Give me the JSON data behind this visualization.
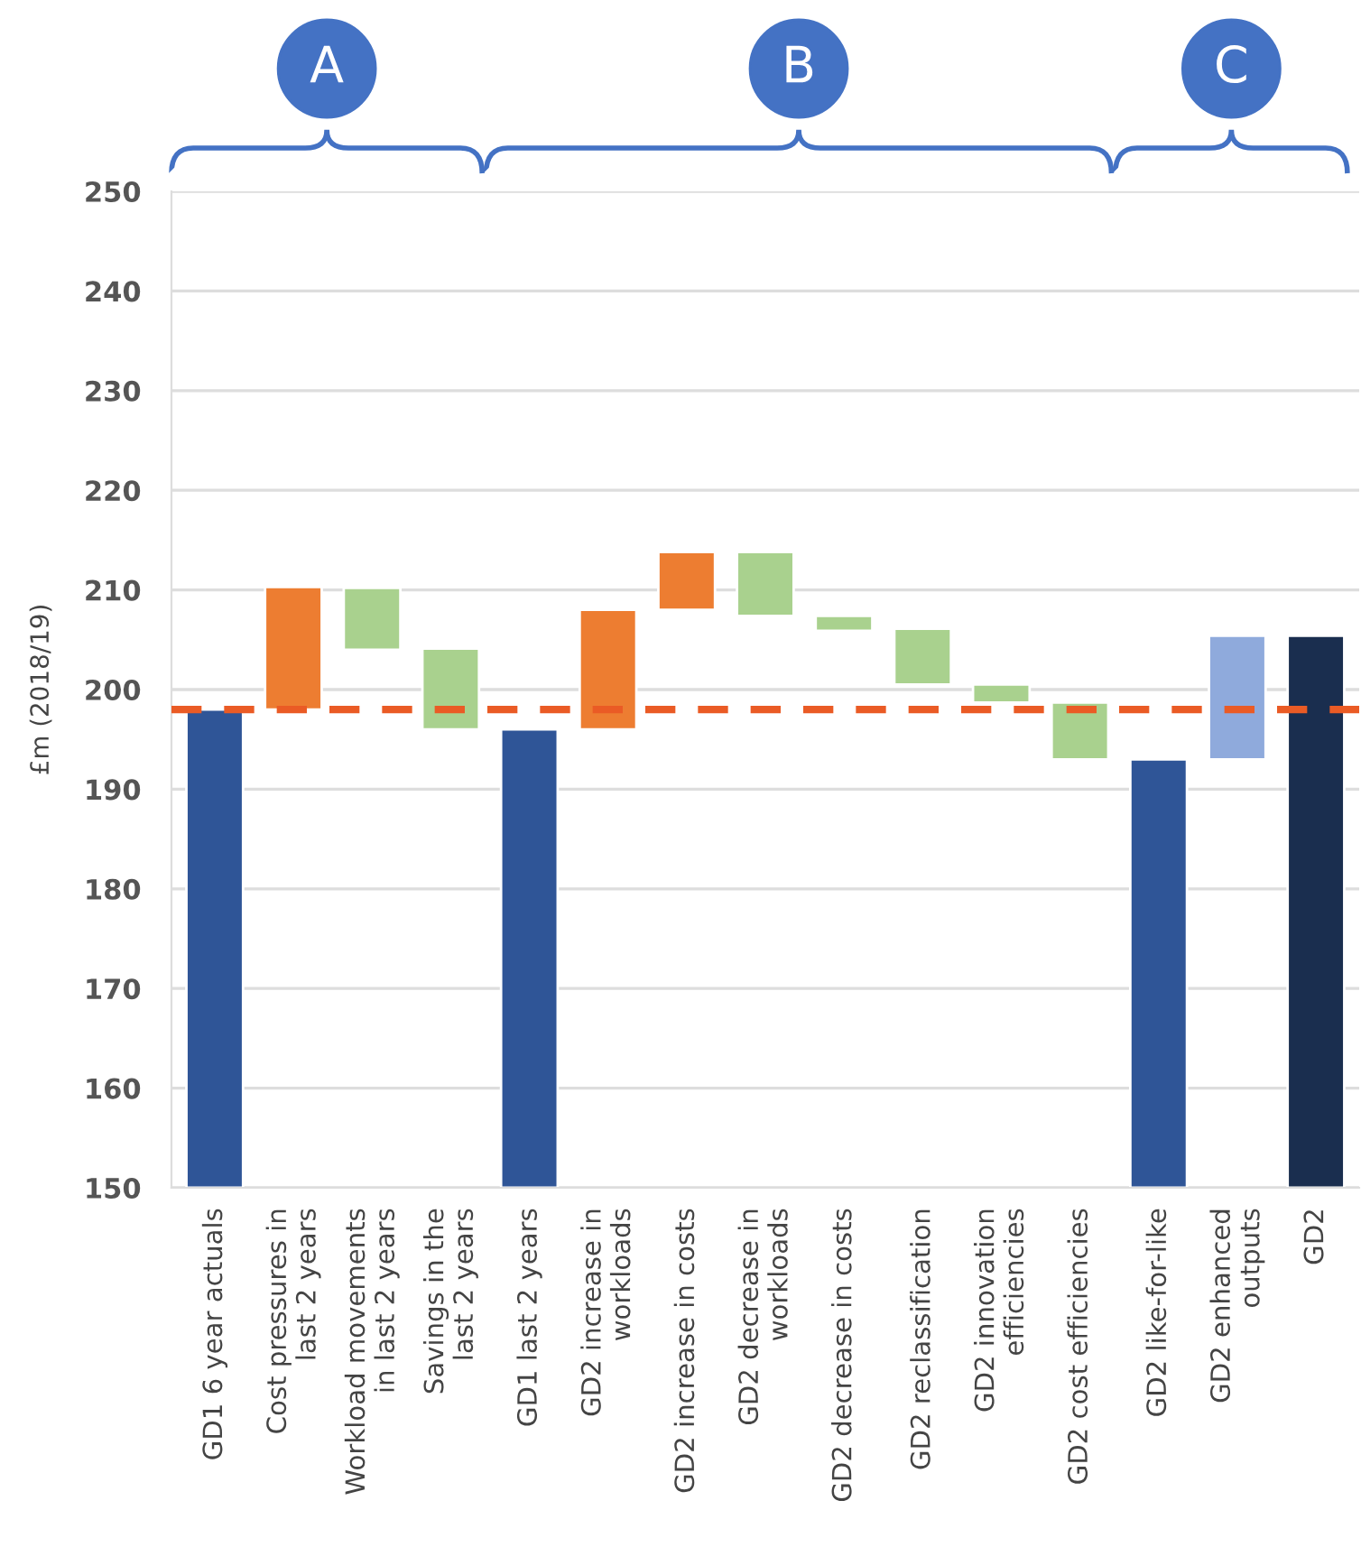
{
  "chart_data": {
    "type": "bar",
    "ylabel": "£m (2018/19)",
    "categories": [
      "GD1 6 year actuals",
      "Cost pressures in\nlast 2 years",
      "Workload movements\nin last 2 years",
      "Savings in the\nlast 2 years",
      "GD1 last 2 years",
      "GD2 increase in\nworkloads",
      "GD2 increase in costs",
      "GD2 decrease in\nworkloads",
      "GD2 decrease in costs",
      "GD2 reclassification",
      "GD2 innovation\nefficiencies",
      "GD2 cost efficiencies",
      "GD2 like-for-like",
      "GD2 enhanced\noutputs",
      "GD2"
    ],
    "base": [
      150,
      198,
      204.0,
      196.0,
      150,
      196,
      208,
      207.4,
      205.9,
      200.5,
      198.7,
      193.0,
      150,
      193.0,
      150
    ],
    "values": [
      48,
      12.3,
      6.2,
      8.1,
      46,
      12,
      5.8,
      6.4,
      1.5,
      5.6,
      1.8,
      5.7,
      43,
      12.4,
      55.4
    ],
    "colors": [
      "#2f5597",
      "#ed7d31",
      "#a9d18e",
      "#a9d18e",
      "#2f5597",
      "#ed7d31",
      "#ed7d31",
      "#a9d18e",
      "#a9d18e",
      "#a9d18e",
      "#a9d18e",
      "#a9d18e",
      "#2f5597",
      "#8faadc",
      "#1a2e4f"
    ],
    "ylim": [
      150,
      250
    ],
    "yticks": [
      150,
      160,
      170,
      180,
      190,
      200,
      210,
      220,
      230,
      240,
      250
    ],
    "grid": "y",
    "legend": false,
    "ref_lines": [
      {
        "axis": "y",
        "value": 198,
        "color": "#ea5b25",
        "line_style": "dashed"
      }
    ],
    "annotations": [
      "A",
      "B",
      "C"
    ]
  }
}
